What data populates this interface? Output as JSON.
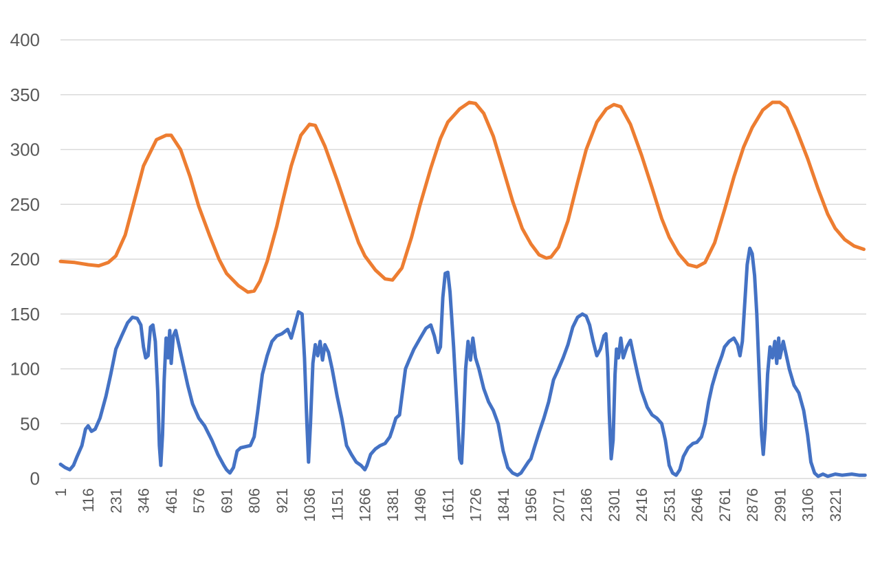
{
  "chart_data": {
    "type": "line",
    "title": "",
    "xlabel": "",
    "ylabel": "",
    "ylim": [
      0,
      400
    ],
    "yticks": [
      0,
      50,
      100,
      150,
      200,
      250,
      300,
      350,
      400
    ],
    "xlim": [
      1,
      3350
    ],
    "xticks": [
      1,
      116,
      231,
      346,
      461,
      576,
      691,
      806,
      921,
      1036,
      1151,
      1266,
      1381,
      1496,
      1611,
      1726,
      1841,
      1956,
      2071,
      2186,
      2301,
      2416,
      2531,
      2646,
      2761,
      2876,
      2991,
      3106,
      3221
    ],
    "grid": true,
    "legend": "none",
    "series": [
      {
        "color": "#ED7D31",
        "points": [
          [
            1,
            198
          ],
          [
            60,
            197
          ],
          [
            116,
            195
          ],
          [
            160,
            194
          ],
          [
            200,
            197
          ],
          [
            231,
            203
          ],
          [
            270,
            222
          ],
          [
            310,
            255
          ],
          [
            346,
            285
          ],
          [
            400,
            309
          ],
          [
            440,
            313
          ],
          [
            461,
            313
          ],
          [
            500,
            300
          ],
          [
            540,
            275
          ],
          [
            576,
            248
          ],
          [
            620,
            222
          ],
          [
            660,
            200
          ],
          [
            691,
            187
          ],
          [
            740,
            176
          ],
          [
            780,
            170
          ],
          [
            806,
            171
          ],
          [
            830,
            180
          ],
          [
            860,
            198
          ],
          [
            900,
            230
          ],
          [
            921,
            250
          ],
          [
            960,
            285
          ],
          [
            1000,
            313
          ],
          [
            1036,
            323
          ],
          [
            1060,
            322
          ],
          [
            1100,
            303
          ],
          [
            1151,
            272
          ],
          [
            1200,
            240
          ],
          [
            1240,
            215
          ],
          [
            1266,
            203
          ],
          [
            1310,
            190
          ],
          [
            1350,
            182
          ],
          [
            1381,
            181
          ],
          [
            1420,
            192
          ],
          [
            1460,
            220
          ],
          [
            1496,
            250
          ],
          [
            1540,
            283
          ],
          [
            1580,
            310
          ],
          [
            1611,
            325
          ],
          [
            1660,
            337
          ],
          [
            1700,
            343
          ],
          [
            1726,
            342
          ],
          [
            1760,
            333
          ],
          [
            1800,
            312
          ],
          [
            1841,
            282
          ],
          [
            1880,
            253
          ],
          [
            1920,
            228
          ],
          [
            1956,
            214
          ],
          [
            1990,
            204
          ],
          [
            2020,
            201
          ],
          [
            2040,
            202
          ],
          [
            2071,
            211
          ],
          [
            2110,
            235
          ],
          [
            2150,
            270
          ],
          [
            2186,
            300
          ],
          [
            2230,
            325
          ],
          [
            2270,
            337
          ],
          [
            2301,
            341
          ],
          [
            2330,
            339
          ],
          [
            2370,
            323
          ],
          [
            2416,
            295
          ],
          [
            2460,
            265
          ],
          [
            2500,
            237
          ],
          [
            2531,
            220
          ],
          [
            2570,
            205
          ],
          [
            2610,
            195
          ],
          [
            2646,
            193
          ],
          [
            2680,
            197
          ],
          [
            2720,
            215
          ],
          [
            2761,
            245
          ],
          [
            2800,
            275
          ],
          [
            2840,
            302
          ],
          [
            2876,
            320
          ],
          [
            2920,
            336
          ],
          [
            2960,
            343
          ],
          [
            2991,
            343
          ],
          [
            3020,
            338
          ],
          [
            3060,
            318
          ],
          [
            3106,
            292
          ],
          [
            3150,
            264
          ],
          [
            3190,
            241
          ],
          [
            3221,
            228
          ],
          [
            3260,
            218
          ],
          [
            3300,
            212
          ],
          [
            3340,
            209
          ]
        ]
      },
      {
        "color": "#4472C4",
        "points": [
          [
            1,
            13
          ],
          [
            20,
            10
          ],
          [
            40,
            8
          ],
          [
            55,
            12
          ],
          [
            70,
            20
          ],
          [
            90,
            30
          ],
          [
            105,
            45
          ],
          [
            116,
            48
          ],
          [
            130,
            43
          ],
          [
            145,
            45
          ],
          [
            165,
            55
          ],
          [
            190,
            75
          ],
          [
            210,
            95
          ],
          [
            231,
            118
          ],
          [
            255,
            130
          ],
          [
            280,
            142
          ],
          [
            300,
            147
          ],
          [
            320,
            146
          ],
          [
            335,
            140
          ],
          [
            346,
            120
          ],
          [
            355,
            110
          ],
          [
            365,
            112
          ],
          [
            375,
            138
          ],
          [
            385,
            140
          ],
          [
            395,
            125
          ],
          [
            405,
            80
          ],
          [
            412,
            30
          ],
          [
            418,
            12
          ],
          [
            425,
            40
          ],
          [
            432,
            90
          ],
          [
            440,
            128
          ],
          [
            448,
            110
          ],
          [
            455,
            135
          ],
          [
            461,
            105
          ],
          [
            470,
            130
          ],
          [
            480,
            135
          ],
          [
            495,
            120
          ],
          [
            510,
            105
          ],
          [
            530,
            85
          ],
          [
            550,
            68
          ],
          [
            576,
            55
          ],
          [
            600,
            48
          ],
          [
            630,
            35
          ],
          [
            655,
            22
          ],
          [
            680,
            12
          ],
          [
            691,
            8
          ],
          [
            705,
            5
          ],
          [
            720,
            10
          ],
          [
            735,
            25
          ],
          [
            750,
            28
          ],
          [
            770,
            29
          ],
          [
            790,
            30
          ],
          [
            806,
            38
          ],
          [
            820,
            60
          ],
          [
            840,
            95
          ],
          [
            860,
            112
          ],
          [
            880,
            125
          ],
          [
            900,
            130
          ],
          [
            921,
            132
          ],
          [
            945,
            136
          ],
          [
            960,
            128
          ],
          [
            975,
            140
          ],
          [
            990,
            152
          ],
          [
            1005,
            150
          ],
          [
            1015,
            110
          ],
          [
            1025,
            50
          ],
          [
            1032,
            15
          ],
          [
            1040,
            50
          ],
          [
            1050,
            105
          ],
          [
            1060,
            122
          ],
          [
            1070,
            112
          ],
          [
            1080,
            125
          ],
          [
            1090,
            108
          ],
          [
            1100,
            122
          ],
          [
            1115,
            115
          ],
          [
            1130,
            100
          ],
          [
            1151,
            75
          ],
          [
            1170,
            55
          ],
          [
            1190,
            30
          ],
          [
            1210,
            22
          ],
          [
            1230,
            15
          ],
          [
            1250,
            12
          ],
          [
            1266,
            8
          ],
          [
            1275,
            12
          ],
          [
            1290,
            22
          ],
          [
            1310,
            27
          ],
          [
            1330,
            30
          ],
          [
            1350,
            32
          ],
          [
            1370,
            38
          ],
          [
            1381,
            45
          ],
          [
            1395,
            55
          ],
          [
            1410,
            58
          ],
          [
            1420,
            75
          ],
          [
            1435,
            100
          ],
          [
            1450,
            108
          ],
          [
            1470,
            118
          ],
          [
            1496,
            128
          ],
          [
            1520,
            137
          ],
          [
            1540,
            140
          ],
          [
            1555,
            130
          ],
          [
            1570,
            115
          ],
          [
            1580,
            120
          ],
          [
            1590,
            165
          ],
          [
            1600,
            187
          ],
          [
            1611,
            188
          ],
          [
            1620,
            170
          ],
          [
            1635,
            120
          ],
          [
            1650,
            60
          ],
          [
            1660,
            18
          ],
          [
            1668,
            14
          ],
          [
            1675,
            45
          ],
          [
            1685,
            100
          ],
          [
            1695,
            125
          ],
          [
            1705,
            108
          ],
          [
            1715,
            128
          ],
          [
            1726,
            110
          ],
          [
            1740,
            100
          ],
          [
            1760,
            82
          ],
          [
            1780,
            70
          ],
          [
            1800,
            62
          ],
          [
            1820,
            50
          ],
          [
            1841,
            25
          ],
          [
            1860,
            10
          ],
          [
            1880,
            5
          ],
          [
            1900,
            3
          ],
          [
            1915,
            5
          ],
          [
            1930,
            10
          ],
          [
            1945,
            15
          ],
          [
            1956,
            18
          ],
          [
            1970,
            28
          ],
          [
            1990,
            42
          ],
          [
            2010,
            55
          ],
          [
            2030,
            70
          ],
          [
            2050,
            90
          ],
          [
            2071,
            100
          ],
          [
            2090,
            110
          ],
          [
            2110,
            122
          ],
          [
            2130,
            138
          ],
          [
            2150,
            147
          ],
          [
            2170,
            150
          ],
          [
            2186,
            148
          ],
          [
            2200,
            140
          ],
          [
            2215,
            125
          ],
          [
            2230,
            112
          ],
          [
            2245,
            118
          ],
          [
            2260,
            130
          ],
          [
            2268,
            132
          ],
          [
            2275,
            110
          ],
          [
            2282,
            60
          ],
          [
            2290,
            18
          ],
          [
            2298,
            35
          ],
          [
            2306,
            95
          ],
          [
            2312,
            118
          ],
          [
            2320,
            110
          ],
          [
            2330,
            128
          ],
          [
            2340,
            110
          ],
          [
            2355,
            120
          ],
          [
            2370,
            126
          ],
          [
            2385,
            110
          ],
          [
            2400,
            95
          ],
          [
            2416,
            80
          ],
          [
            2440,
            65
          ],
          [
            2460,
            58
          ],
          [
            2480,
            55
          ],
          [
            2500,
            50
          ],
          [
            2515,
            35
          ],
          [
            2531,
            12
          ],
          [
            2545,
            5
          ],
          [
            2560,
            3
          ],
          [
            2575,
            8
          ],
          [
            2590,
            20
          ],
          [
            2610,
            28
          ],
          [
            2630,
            32
          ],
          [
            2646,
            33
          ],
          [
            2665,
            38
          ],
          [
            2680,
            50
          ],
          [
            2695,
            70
          ],
          [
            2710,
            85
          ],
          [
            2730,
            100
          ],
          [
            2750,
            112
          ],
          [
            2761,
            120
          ],
          [
            2780,
            125
          ],
          [
            2800,
            128
          ],
          [
            2815,
            122
          ],
          [
            2825,
            112
          ],
          [
            2835,
            125
          ],
          [
            2845,
            160
          ],
          [
            2855,
            195
          ],
          [
            2866,
            210
          ],
          [
            2876,
            205
          ],
          [
            2886,
            185
          ],
          [
            2895,
            150
          ],
          [
            2905,
            95
          ],
          [
            2915,
            40
          ],
          [
            2922,
            22
          ],
          [
            2930,
            45
          ],
          [
            2940,
            95
          ],
          [
            2950,
            120
          ],
          [
            2960,
            110
          ],
          [
            2970,
            125
          ],
          [
            2978,
            105
          ],
          [
            2986,
            128
          ],
          [
            2991,
            110
          ],
          [
            3005,
            125
          ],
          [
            3015,
            115
          ],
          [
            3030,
            100
          ],
          [
            3050,
            85
          ],
          [
            3070,
            78
          ],
          [
            3090,
            62
          ],
          [
            3106,
            40
          ],
          [
            3120,
            15
          ],
          [
            3135,
            5
          ],
          [
            3150,
            2
          ],
          [
            3170,
            4
          ],
          [
            3190,
            2
          ],
          [
            3221,
            4
          ],
          [
            3250,
            3
          ],
          [
            3290,
            4
          ],
          [
            3320,
            3
          ],
          [
            3345,
            3
          ]
        ]
      }
    ]
  }
}
